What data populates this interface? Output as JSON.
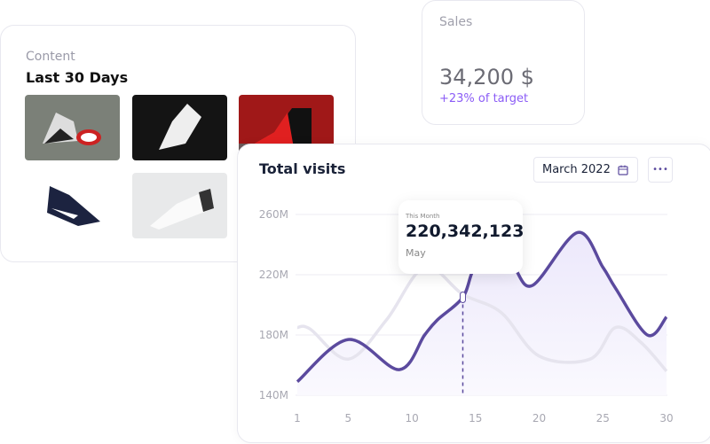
{
  "content_card": {
    "label": "Content",
    "title": "Last 30 Days",
    "images": [
      {
        "name": "shoe-grey-black-sneaker"
      },
      {
        "name": "shoe-white-on-black"
      },
      {
        "name": "shoe-red-high-top"
      },
      {
        "name": "shoe-navy-suede"
      },
      {
        "name": "shoe-white-minimal"
      }
    ]
  },
  "sales_card": {
    "label": "Sales",
    "value": "34,200 $",
    "subtext": "+23% of target",
    "accent": "#8b5cf6"
  },
  "visits_card": {
    "title": "Total visits",
    "date_button": "March 2022",
    "date_icon": "calendar-icon",
    "more_icon": "more-icon",
    "tooltip": {
      "label": "This Month",
      "value": "220,342,123",
      "period": "May"
    }
  },
  "chart_data": {
    "type": "line",
    "x_ticks": [
      "1",
      "5",
      "10",
      "15",
      "20",
      "25",
      "30"
    ],
    "y_ticks": [
      "140M",
      "180M",
      "220M",
      "260M"
    ],
    "ylim": [
      140,
      260
    ],
    "xlim": [
      1,
      30
    ],
    "grid": true,
    "series": [
      {
        "color": "#5b4a9e",
        "area": true,
        "x": [
          1,
          5,
          9,
          11,
          12,
          14,
          15,
          17,
          18,
          19.5,
          23,
          25,
          26,
          28.5,
          30
        ],
        "y": [
          149,
          177,
          157,
          180,
          190,
          205,
          225,
          228,
          225,
          213,
          248,
          225,
          211,
          180,
          192
        ]
      },
      {
        "color": "#e6e4ee",
        "x": [
          1,
          2,
          5,
          8,
          11,
          14,
          17,
          20,
          24,
          26,
          28,
          30
        ],
        "y": [
          185,
          184,
          164,
          190,
          225,
          207,
          195,
          166,
          164,
          185,
          175,
          156
        ]
      }
    ],
    "highlight_x": 14
  }
}
